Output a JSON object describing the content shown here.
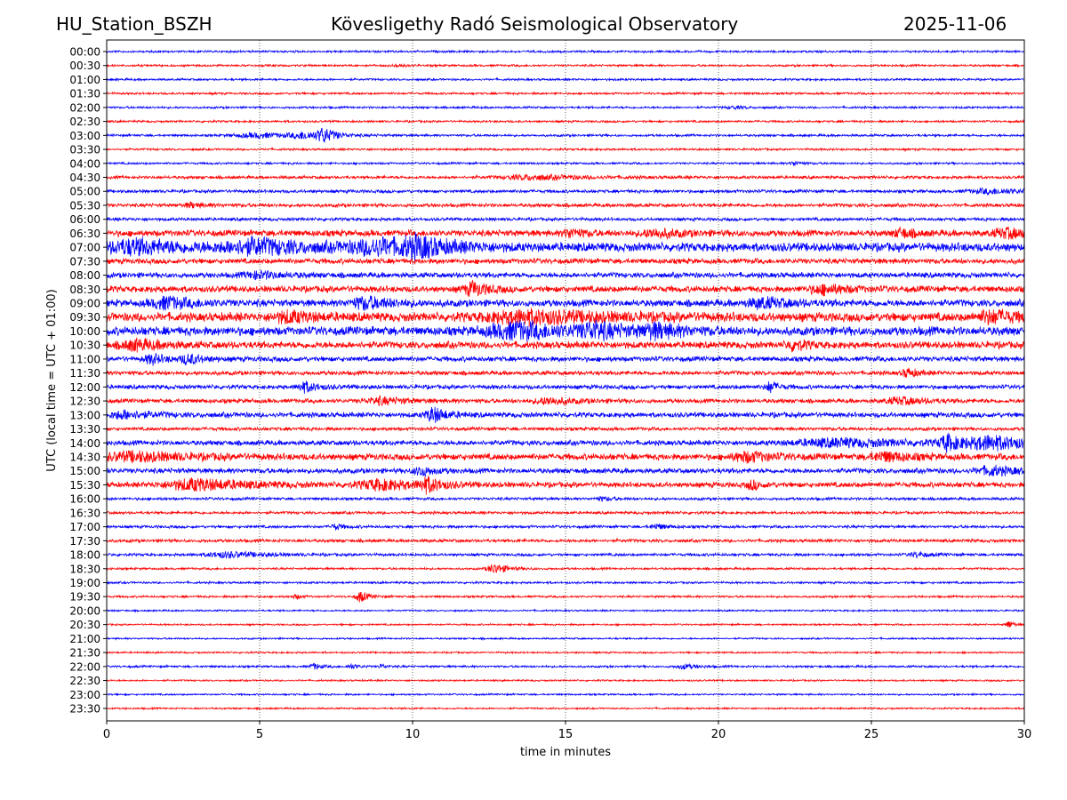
{
  "header": {
    "station": "HU_Station_BSZH",
    "observatory": "Kövesligethy Radó Seismological Observatory",
    "date": "2025-11-06"
  },
  "chart_data": {
    "type": "line",
    "title": "Kövesligethy Radó Seismological Observatory",
    "xlabel": "time in minutes",
    "ylabel": "UTC (local time = UTC + 01:00)",
    "xlim": [
      0,
      30
    ],
    "xticks": [
      "0",
      "5",
      "10",
      "15",
      "20",
      "25",
      "30"
    ],
    "grid": "dotted vertical at 5-minute intervals",
    "colors": [
      "#0000ff",
      "#ff0000"
    ],
    "amplitude_unit": "relative counts (arbitrary)",
    "rows": [
      {
        "label": "00:00",
        "noise": 1,
        "events": []
      },
      {
        "label": "00:30",
        "noise": 1,
        "events": [
          [
            9.5,
            1.5,
            0.3
          ]
        ]
      },
      {
        "label": "01:00",
        "noise": 1,
        "events": []
      },
      {
        "label": "01:30",
        "noise": 1,
        "events": []
      },
      {
        "label": "02:00",
        "noise": 1,
        "events": [
          [
            20.5,
            1.5,
            0.5
          ]
        ]
      },
      {
        "label": "02:30",
        "noise": 1,
        "events": []
      },
      {
        "label": "03:00",
        "noise": 1.1,
        "events": [
          [
            5,
            2.5,
            1.5
          ],
          [
            6.5,
            3.5,
            0.8
          ],
          [
            7.1,
            7,
            0.4
          ]
        ]
      },
      {
        "label": "03:30",
        "noise": 1,
        "events": []
      },
      {
        "label": "04:00",
        "noise": 1,
        "events": [
          [
            22.5,
            2.5,
            0.3
          ]
        ]
      },
      {
        "label": "04:30",
        "noise": 1.4,
        "events": [
          [
            14,
            2.5,
            2
          ]
        ]
      },
      {
        "label": "05:00",
        "noise": 1.5,
        "events": [
          [
            29,
            2.5,
            1.5
          ]
        ]
      },
      {
        "label": "05:30",
        "noise": 1.7,
        "events": [
          [
            2.8,
            2.5,
            0.5
          ]
        ]
      },
      {
        "label": "06:00",
        "noise": 1.5,
        "events": []
      },
      {
        "label": "06:30",
        "noise": 3,
        "events": [
          [
            15.2,
            4.5,
            0.5
          ],
          [
            18,
            4,
            1
          ],
          [
            26,
            4.5,
            0.5
          ],
          [
            29.5,
            4.5,
            1
          ]
        ]
      },
      {
        "label": "07:00",
        "noise": 4.2,
        "events": [
          [
            1,
            7,
            2
          ],
          [
            5,
            7,
            2
          ],
          [
            9,
            7,
            2
          ],
          [
            10.2,
            8,
            1
          ]
        ]
      },
      {
        "label": "07:30",
        "noise": 2.5,
        "events": []
      },
      {
        "label": "08:00",
        "noise": 2.5,
        "events": [
          [
            5,
            3.5,
            1
          ]
        ]
      },
      {
        "label": "08:30",
        "noise": 3,
        "events": [
          [
            12,
            7,
            0.6
          ],
          [
            23.5,
            4.5,
            1
          ]
        ]
      },
      {
        "label": "09:00",
        "noise": 3.3,
        "events": [
          [
            2,
            6,
            1
          ],
          [
            8.5,
            6,
            1
          ],
          [
            21.5,
            5,
            1
          ]
        ]
      },
      {
        "label": "09:30",
        "noise": 4.2,
        "events": [
          [
            6,
            5,
            1
          ],
          [
            14,
            6,
            3
          ],
          [
            29,
            6,
            1
          ]
        ]
      },
      {
        "label": "10:00",
        "noise": 4.2,
        "events": [
          [
            13.5,
            8,
            2
          ],
          [
            16,
            7,
            1
          ],
          [
            18,
            6,
            1
          ]
        ]
      },
      {
        "label": "10:30",
        "noise": 3.3,
        "events": [
          [
            1,
            5,
            1
          ],
          [
            22.5,
            5,
            0.5
          ]
        ]
      },
      {
        "label": "11:00",
        "noise": 2.4,
        "events": [
          [
            1.5,
            5,
            0.5
          ],
          [
            2.7,
            5,
            0.5
          ]
        ]
      },
      {
        "label": "11:30",
        "noise": 2,
        "events": [
          [
            26.2,
            4.5,
            0.4
          ]
        ]
      },
      {
        "label": "12:00",
        "noise": 2,
        "events": [
          [
            6.5,
            5.5,
            0.5
          ],
          [
            21.7,
            6,
            0.3
          ]
        ]
      },
      {
        "label": "12:30",
        "noise": 2,
        "events": [
          [
            9,
            3.5,
            1
          ],
          [
            14.5,
            3.5,
            1
          ],
          [
            26,
            3.5,
            1
          ]
        ]
      },
      {
        "label": "13:00",
        "noise": 2.4,
        "events": [
          [
            0.6,
            4,
            1
          ],
          [
            10.7,
            8,
            0.5
          ]
        ]
      },
      {
        "label": "13:30",
        "noise": 1.6,
        "events": []
      },
      {
        "label": "14:00",
        "noise": 2.4,
        "events": [
          [
            24,
            4,
            3
          ],
          [
            27.5,
            8,
            0.5
          ],
          [
            29,
            7,
            1.5
          ]
        ]
      },
      {
        "label": "14:30",
        "noise": 3,
        "events": [
          [
            1,
            4.5,
            2
          ],
          [
            21,
            5,
            1
          ],
          [
            25.5,
            4.5,
            1
          ]
        ]
      },
      {
        "label": "15:00",
        "noise": 2.4,
        "events": [
          [
            10.3,
            4.5,
            0.5
          ],
          [
            29,
            4.5,
            1
          ]
        ]
      },
      {
        "label": "15:30",
        "noise": 2.5,
        "events": [
          [
            3,
            6,
            2
          ],
          [
            9,
            5,
            1.5
          ],
          [
            10.5,
            7,
            0.5
          ],
          [
            21.1,
            5,
            0.3
          ]
        ]
      },
      {
        "label": "16:00",
        "noise": 1.3,
        "events": [
          [
            16.2,
            2,
            0.4
          ]
        ]
      },
      {
        "label": "16:30",
        "noise": 1.3,
        "events": []
      },
      {
        "label": "17:00",
        "noise": 1.3,
        "events": [
          [
            7.5,
            3,
            0.3
          ],
          [
            18,
            2.5,
            0.5
          ]
        ]
      },
      {
        "label": "17:30",
        "noise": 1.5,
        "events": []
      },
      {
        "label": "18:00",
        "noise": 1.3,
        "events": [
          [
            4,
            3,
            1.5
          ],
          [
            26.5,
            2.5,
            0.5
          ]
        ]
      },
      {
        "label": "18:30",
        "noise": 1,
        "events": [
          [
            12.7,
            5.5,
            0.5
          ]
        ]
      },
      {
        "label": "19:00",
        "noise": 1,
        "events": []
      },
      {
        "label": "19:30",
        "noise": 1,
        "events": [
          [
            6.2,
            2.5,
            0.2
          ],
          [
            8.3,
            6,
            0.3
          ]
        ]
      },
      {
        "label": "20:00",
        "noise": 0.8,
        "events": []
      },
      {
        "label": "20:30",
        "noise": 0.8,
        "events": [
          [
            29.5,
            4.5,
            0.2
          ]
        ]
      },
      {
        "label": "21:00",
        "noise": 0.8,
        "events": []
      },
      {
        "label": "21:30",
        "noise": 0.8,
        "events": []
      },
      {
        "label": "22:00",
        "noise": 1,
        "events": [
          [
            6.8,
            3,
            0.3
          ],
          [
            8,
            2.5,
            0.3
          ],
          [
            9,
            2.5,
            0.2
          ],
          [
            18.9,
            2.5,
            0.5
          ]
        ]
      },
      {
        "label": "22:30",
        "noise": 0.8,
        "events": []
      },
      {
        "label": "23:00",
        "noise": 0.8,
        "events": []
      },
      {
        "label": "23:30",
        "noise": 0.8,
        "events": []
      }
    ]
  }
}
